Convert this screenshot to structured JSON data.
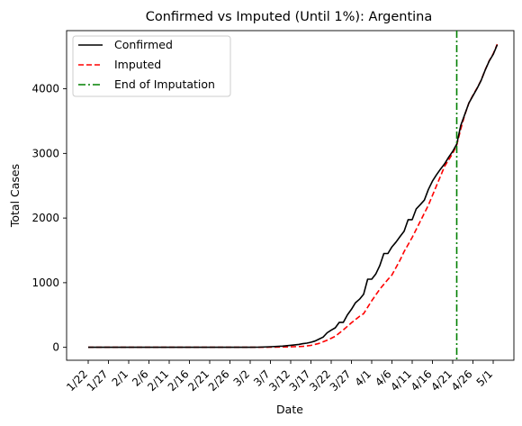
{
  "chart_data": {
    "type": "line",
    "title": "Confirmed vs Imputed (Until 1%): Argentina",
    "xlabel": "Date",
    "ylabel": "Total Cases",
    "x_tick_labels": [
      "1/22",
      "1/27",
      "2/1",
      "2/6",
      "2/11",
      "2/16",
      "2/21",
      "2/26",
      "3/2",
      "3/7",
      "3/12",
      "3/17",
      "3/22",
      "3/27",
      "4/1",
      "4/6",
      "4/11",
      "4/16",
      "4/21",
      "4/26",
      "5/1"
    ],
    "y_ticks": [
      0,
      1000,
      2000,
      3000,
      4000
    ],
    "ylim": [
      -200,
      4900
    ],
    "x_start_date": "1/22",
    "grid": false,
    "legend_position": "top-left",
    "series": [
      {
        "name": "Confirmed",
        "color": "#000000",
        "style": "solid",
        "points": [
          [
            "1/22",
            0
          ],
          [
            "2/26",
            0
          ],
          [
            "3/2",
            1
          ],
          [
            "3/4",
            2
          ],
          [
            "3/7",
            9
          ],
          [
            "3/10",
            19
          ],
          [
            "3/12",
            31
          ],
          [
            "3/14",
            45
          ],
          [
            "3/15",
            56
          ],
          [
            "3/16",
            65
          ],
          [
            "3/17",
            79
          ],
          [
            "3/18",
            97
          ],
          [
            "3/19",
            128
          ],
          [
            "3/20",
            158
          ],
          [
            "3/21",
            225
          ],
          [
            "3/22",
            266
          ],
          [
            "3/23",
            301
          ],
          [
            "3/24",
            387
          ],
          [
            "3/25",
            387
          ],
          [
            "3/26",
            502
          ],
          [
            "3/27",
            589
          ],
          [
            "3/28",
            690
          ],
          [
            "3/29",
            745
          ],
          [
            "3/30",
            820
          ],
          [
            "3/31",
            1054
          ],
          [
            "4/1",
            1054
          ],
          [
            "4/2",
            1133
          ],
          [
            "4/3",
            1265
          ],
          [
            "4/4",
            1451
          ],
          [
            "4/5",
            1451
          ],
          [
            "4/6",
            1554
          ],
          [
            "4/7",
            1628
          ],
          [
            "4/8",
            1715
          ],
          [
            "4/9",
            1795
          ],
          [
            "4/10",
            1975
          ],
          [
            "4/11",
            1975
          ],
          [
            "4/12",
            2142
          ],
          [
            "4/13",
            2208
          ],
          [
            "4/14",
            2277
          ],
          [
            "4/15",
            2443
          ],
          [
            "4/16",
            2571
          ],
          [
            "4/17",
            2669
          ],
          [
            "4/18",
            2758
          ],
          [
            "4/19",
            2839
          ],
          [
            "4/20",
            2941
          ],
          [
            "4/21",
            3031
          ],
          [
            "4/22",
            3144
          ],
          [
            "4/23",
            3435
          ],
          [
            "4/24",
            3607
          ],
          [
            "4/25",
            3780
          ],
          [
            "4/26",
            3892
          ],
          [
            "4/27",
            4003
          ],
          [
            "4/28",
            4127
          ],
          [
            "4/29",
            4285
          ],
          [
            "4/30",
            4428
          ],
          [
            "5/1",
            4532
          ],
          [
            "5/2",
            4681
          ]
        ]
      },
      {
        "name": "Imputed",
        "color": "#ff0000",
        "style": "dashed",
        "points": [
          [
            "1/22",
            0
          ],
          [
            "3/2",
            0
          ],
          [
            "3/7",
            2
          ],
          [
            "3/12",
            8
          ],
          [
            "3/15",
            15
          ],
          [
            "3/17",
            30
          ],
          [
            "3/19",
            60
          ],
          [
            "3/21",
            110
          ],
          [
            "3/23",
            170
          ],
          [
            "3/25",
            270
          ],
          [
            "3/27",
            380
          ],
          [
            "3/29",
            480
          ],
          [
            "3/30",
            520
          ],
          [
            "4/1",
            720
          ],
          [
            "4/3",
            900
          ],
          [
            "4/5",
            1050
          ],
          [
            "4/6",
            1120
          ],
          [
            "4/8",
            1350
          ],
          [
            "4/9",
            1480
          ],
          [
            "4/11",
            1700
          ],
          [
            "4/13",
            1950
          ],
          [
            "4/15",
            2200
          ],
          [
            "4/17",
            2500
          ],
          [
            "4/19",
            2800
          ],
          [
            "4/21",
            3000
          ],
          [
            "4/22",
            3130
          ],
          [
            "4/23",
            3380
          ],
          [
            "4/24",
            3600
          ],
          [
            "4/25",
            3780
          ],
          [
            "4/26",
            3900
          ],
          [
            "4/27",
            4010
          ],
          [
            "4/28",
            4130
          ],
          [
            "4/29",
            4290
          ],
          [
            "4/30",
            4430
          ],
          [
            "5/1",
            4540
          ],
          [
            "5/2",
            4690
          ]
        ]
      }
    ],
    "vline": {
      "name": "End of Imputation",
      "color": "#008000",
      "style": "dashdot",
      "x": "4/22"
    }
  }
}
